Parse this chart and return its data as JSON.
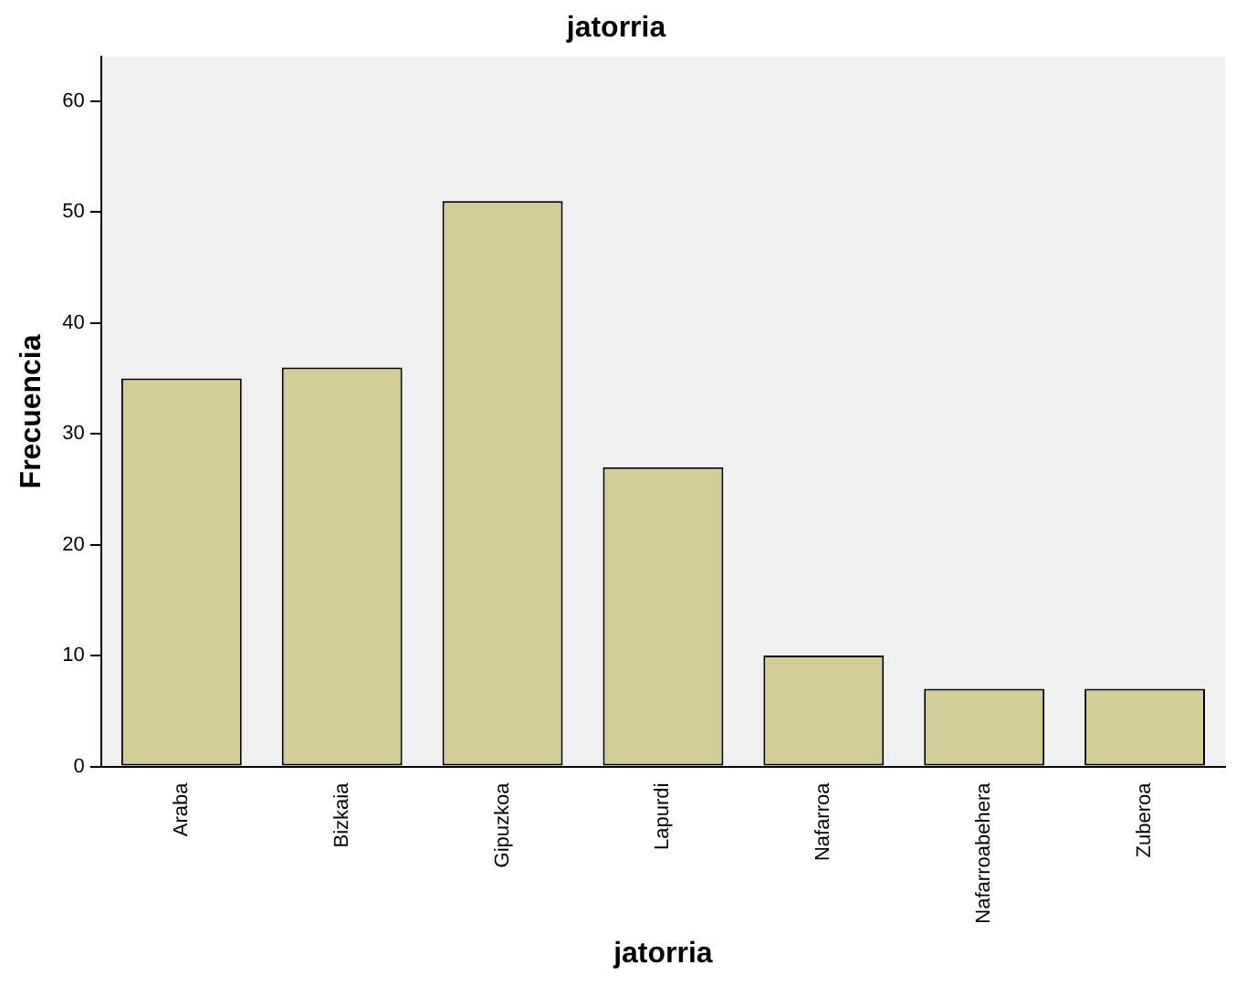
{
  "chart_data": {
    "type": "bar",
    "title": "jatorria",
    "xlabel": "jatorria",
    "ylabel": "Frecuencia",
    "categories": [
      "Araba",
      "Bizkaia",
      "Gipuzkoa",
      "Lapurdi",
      "Nafarroa",
      "Nafarroabehera",
      "Zuberoa"
    ],
    "values": [
      35,
      36,
      51,
      27,
      10,
      7,
      7
    ],
    "color": "#d3ce97",
    "ylim": [
      0,
      64
    ],
    "yticks": [
      0,
      10,
      20,
      30,
      40,
      50,
      60
    ],
    "grid": false,
    "legend": false
  }
}
